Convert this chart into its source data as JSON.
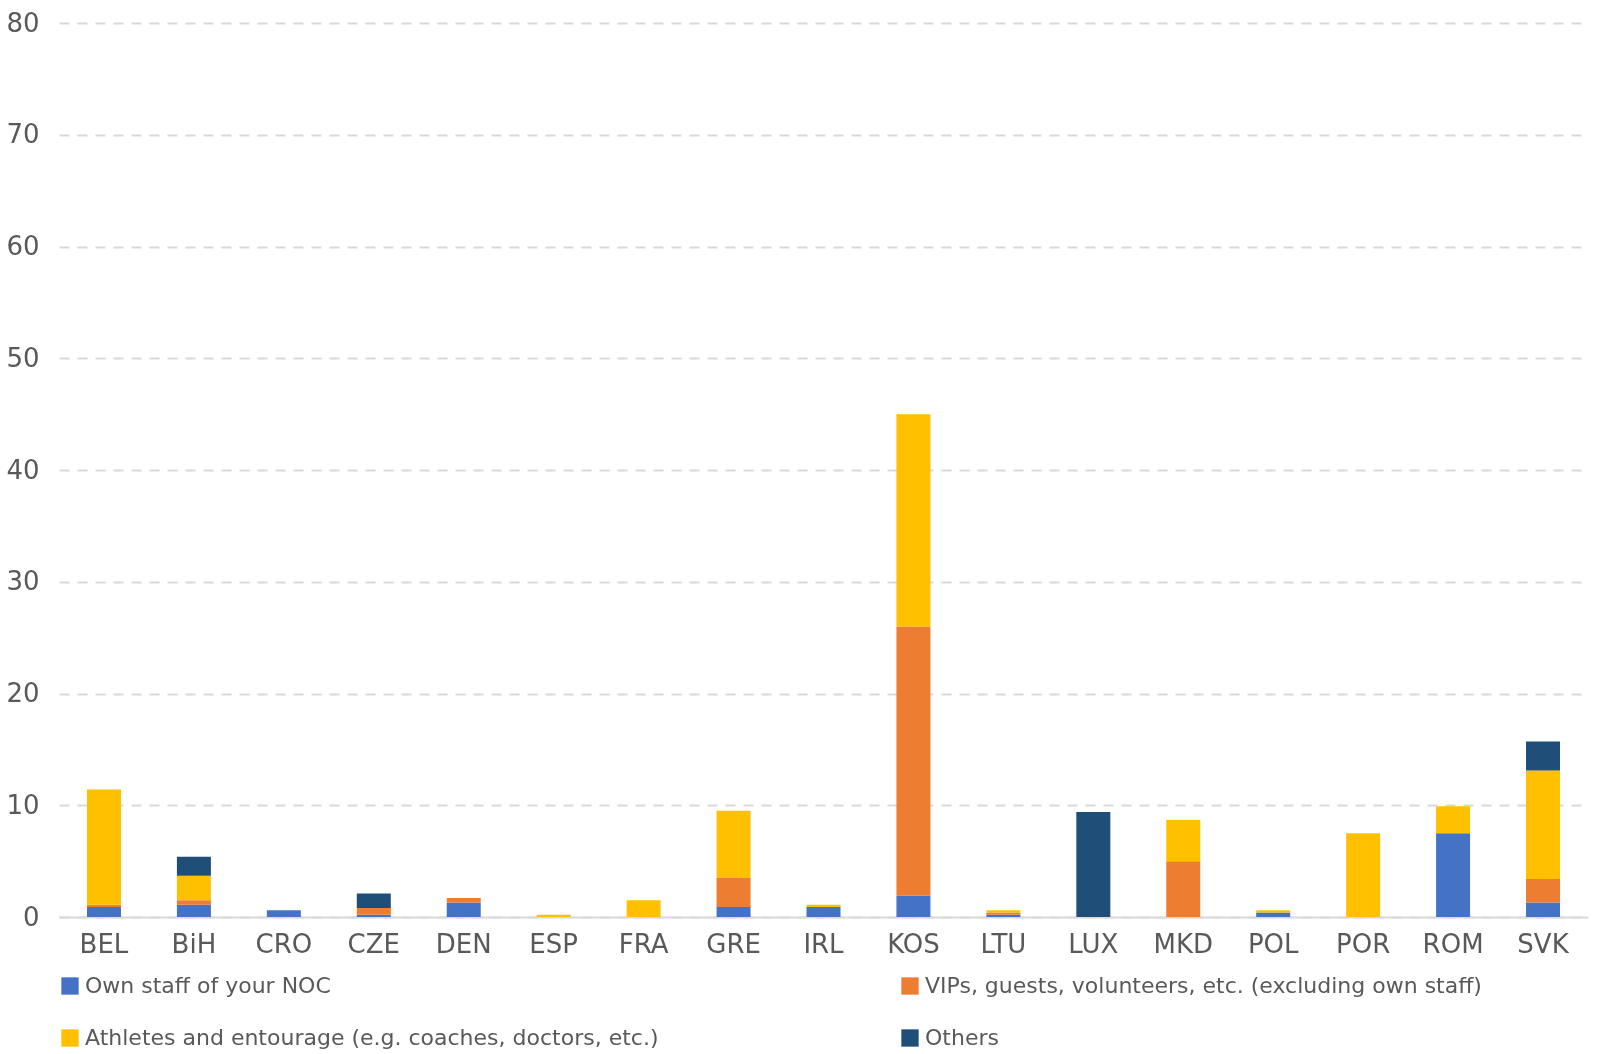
{
  "chart_data": {
    "type": "bar",
    "stacked": true,
    "categories": [
      "BEL",
      "BiH",
      "CRO",
      "CZE",
      "DEN",
      "ESP",
      "FRA",
      "GRE",
      "IRL",
      "KOS",
      "LTU",
      "LUX",
      "MKD",
      "POL",
      "POR",
      "ROM",
      "SVK"
    ],
    "series": [
      {
        "name": "Own staff of your NOC",
        "color": "#4472c4",
        "values": [
          0.9,
          1.1,
          0.6,
          0.2,
          1.3,
          0,
          0,
          0.9,
          0.9,
          1.9,
          0.2,
          0,
          0,
          0.4,
          0,
          7.5,
          1.3
        ]
      },
      {
        "name": "VIPs, guests, volunteers, etc. (excluding own staff)",
        "color": "#ed7d31",
        "values": [
          0.2,
          0.4,
          0,
          0.6,
          0.4,
          0,
          0,
          2.6,
          0,
          24.1,
          0.2,
          0,
          5.0,
          0,
          0,
          0,
          2.1
        ]
      },
      {
        "name": "Athletes and entourage (e.g. coaches, doctors, etc.)",
        "color": "#ffc000",
        "values": [
          10.3,
          2.2,
          0,
          0,
          0,
          0.2,
          1.5,
          6.0,
          0.2,
          19.0,
          0.2,
          0,
          3.7,
          0.2,
          7.5,
          2.4,
          9.7
        ]
      },
      {
        "name": "Others",
        "color": "#1f4e79",
        "values": [
          0,
          1.7,
          0,
          1.3,
          0,
          0,
          0,
          0,
          0,
          0,
          0,
          9.4,
          0,
          0,
          0,
          0,
          2.6
        ]
      }
    ],
    "ylim": [
      0,
      80
    ],
    "yticks": [
      0,
      10,
      20,
      30,
      40,
      50,
      60,
      70,
      80
    ],
    "grid": "y",
    "legend": "bottom"
  }
}
